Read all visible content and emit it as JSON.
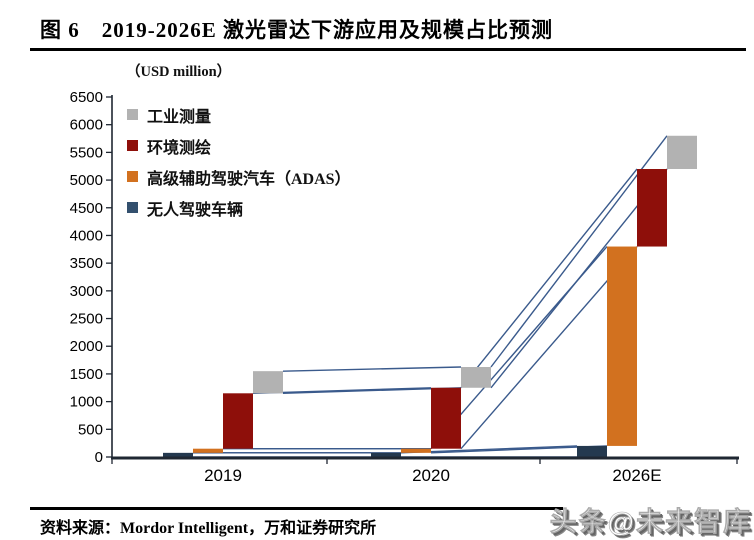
{
  "header": {
    "title": "图 6　2019-2026E 激光雷达下游应用及规模占比预测"
  },
  "chart_data": {
    "type": "bar",
    "subtype": "stacked-waterfall-with-series-lines",
    "title": "2019-2026E 激光雷达下游应用及规模占比预测",
    "unit_label": "（USD million）",
    "categories": [
      "2019",
      "2020",
      "2026E"
    ],
    "series": [
      {
        "name": "无人驾驶车辆",
        "color": "#24394f",
        "values": [
          75,
          75,
          200
        ]
      },
      {
        "name": "高级辅助驾驶汽车（ADAS）",
        "color": "#d2711f",
        "values": [
          75,
          75,
          3600
        ]
      },
      {
        "name": "环境测绘",
        "color": "#8e0f0a",
        "values": [
          1000,
          1100,
          1400
        ]
      },
      {
        "name": "工业测量",
        "color": "#b2b2b2",
        "values": [
          400,
          375,
          600
        ]
      }
    ],
    "cumulative_tops": {
      "2019": [
        75,
        150,
        1150,
        1550
      ],
      "2020": [
        75,
        150,
        1250,
        1625
      ],
      "2026E": [
        200,
        3800,
        5200,
        5800
      ]
    },
    "stack_totals": [
      1550,
      1625,
      5800
    ],
    "ylim": [
      0,
      6500
    ],
    "ytick_step": 500,
    "ytick_labels": [
      "0",
      "500",
      "1000",
      "1500",
      "2000",
      "2500",
      "3000",
      "3500",
      "4000",
      "4500",
      "5000",
      "5500",
      "6000",
      "6500"
    ],
    "grid": false,
    "legend_position": "top-left-inside",
    "legend": {
      "items": [
        {
          "label": "工业测量",
          "color": "#b2b2b2"
        },
        {
          "label": "环境测绘",
          "color": "#8e0f0a"
        },
        {
          "label": "高级辅助驾驶汽车（ADAS）",
          "color": "#d2711f"
        },
        {
          "label": "无人驾驶车辆",
          "color": "#33506e"
        }
      ]
    },
    "connector_line_color": "#3a5a8c",
    "axis_color": "#1f2732"
  },
  "footer": {
    "source": "资料来源：Mordor Intelligent，万和证券研究所"
  },
  "watermark": {
    "text": "头条@未来智库"
  }
}
